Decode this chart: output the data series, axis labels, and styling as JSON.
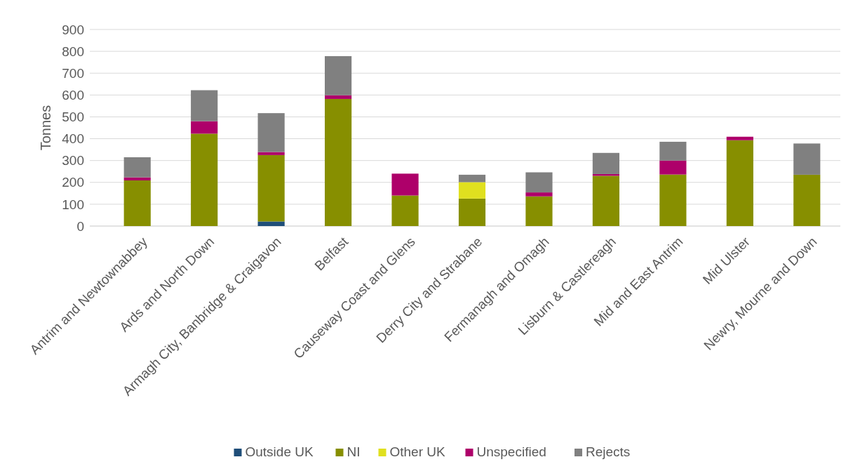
{
  "chart_data": {
    "type": "bar",
    "stacked": true,
    "ylabel": "Tonnes",
    "categories": [
      "Antrim and Newtownabbey",
      "Ards and North Down",
      "Armagh City, Banbridge & Craigavon",
      "Belfast",
      "Causeway Coast and Glens",
      "Derry City and Strabane",
      "Fermanagh and Omagh",
      "Lisburn & Castlereagh",
      "Mid and East Antrim",
      "Mid Ulster",
      "Newry, Mourne and Down"
    ],
    "series": [
      {
        "name": "Outside UK",
        "color": "#1f4e79",
        "values": [
          0,
          0,
          21,
          0,
          0,
          0,
          0,
          0,
          0,
          0,
          0
        ]
      },
      {
        "name": "NI",
        "color": "#878f00",
        "values": [
          209,
          423,
          304,
          582,
          140,
          126,
          136,
          230,
          236,
          393,
          235
        ]
      },
      {
        "name": "Other UK",
        "color": "#e0e01f",
        "values": [
          0,
          null,
          0,
          0,
          0,
          75,
          0,
          0,
          0,
          0,
          0
        ]
      },
      {
        "name": "Unspecified",
        "color": "#ae006a",
        "values": [
          14,
          57,
          14,
          17,
          100,
          0,
          18,
          8,
          64,
          16,
          0
        ]
      },
      {
        "name": "Rejects",
        "color": "#808080",
        "values": [
          92,
          142,
          178,
          179,
          0,
          34,
          92,
          97,
          86,
          0,
          143
        ]
      }
    ],
    "ylim": [
      0,
      900
    ],
    "yticks": [
      0,
      100,
      200,
      300,
      400,
      500,
      600,
      700,
      800,
      900
    ],
    "grid": "y",
    "legend": "bottom"
  }
}
